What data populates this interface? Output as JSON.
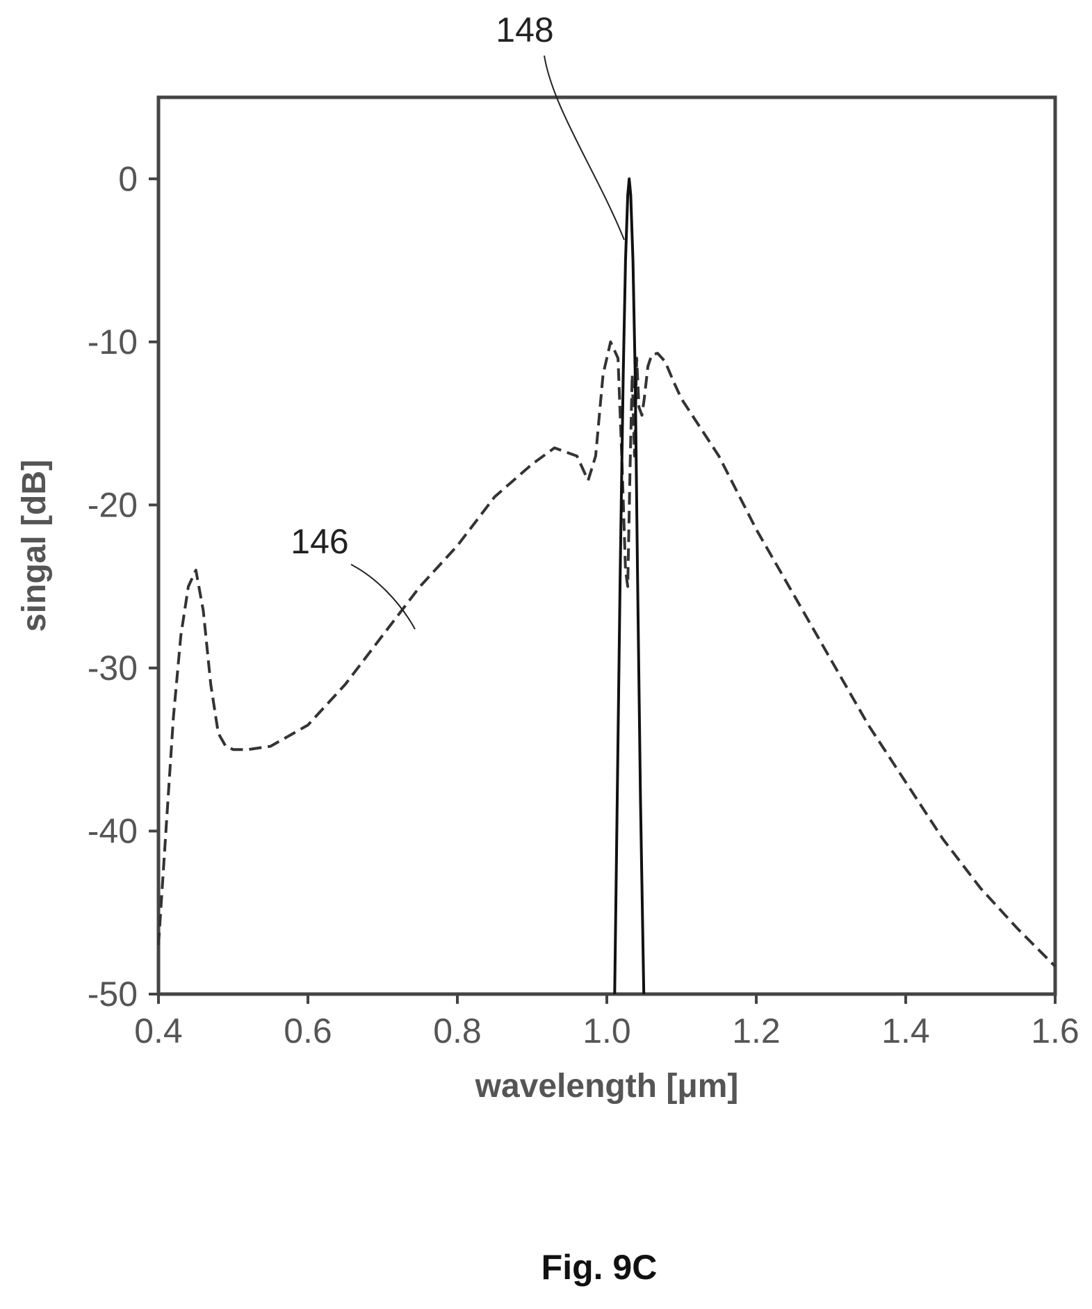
{
  "figure": {
    "caption": "Fig. 9C"
  },
  "chart_data": {
    "type": "line",
    "title": "",
    "xlabel": "wavelength [μm]",
    "ylabel": "singal [dB]",
    "xlim": [
      0.4,
      1.6
    ],
    "ylim": [
      -50,
      5
    ],
    "x_ticks": [
      0.4,
      0.6,
      0.8,
      1.0,
      1.2,
      1.4,
      1.6
    ],
    "x_tick_labels": [
      "0.4",
      "0.6",
      "0.8",
      "1.0",
      "1.2",
      "1.4",
      "1.6"
    ],
    "y_ticks": [
      0,
      -10,
      -20,
      -30,
      -40,
      -50
    ],
    "y_tick_labels": [
      "0",
      "-10",
      "-20",
      "-30",
      "-40",
      "-50"
    ],
    "grid": false,
    "series": [
      {
        "name": "146",
        "style": "dashed",
        "color": "#333333",
        "x": [
          0.4,
          0.41,
          0.42,
          0.43,
          0.44,
          0.45,
          0.46,
          0.47,
          0.48,
          0.49,
          0.5,
          0.52,
          0.55,
          0.6,
          0.65,
          0.7,
          0.75,
          0.8,
          0.85,
          0.9,
          0.93,
          0.96,
          0.975,
          0.985,
          0.995,
          1.005,
          1.015,
          1.02,
          1.025,
          1.028,
          1.031,
          1.034,
          1.037,
          1.04,
          1.043,
          1.047,
          1.05,
          1.055,
          1.06,
          1.068,
          1.078,
          1.09,
          1.1,
          1.15,
          1.2,
          1.25,
          1.3,
          1.35,
          1.4,
          1.45,
          1.5,
          1.55,
          1.6
        ],
        "y": [
          -47,
          -40,
          -33,
          -28,
          -25,
          -24,
          -26.5,
          -31,
          -34,
          -34.8,
          -35,
          -35,
          -34.8,
          -33.5,
          -31,
          -28,
          -25,
          -22.5,
          -19.5,
          -17.5,
          -16.5,
          -17,
          -18.5,
          -17,
          -12,
          -10,
          -11,
          -17,
          -24,
          -25,
          -18,
          -12,
          -17,
          -11,
          -14,
          -14.5,
          -13.5,
          -11.5,
          -10.8,
          -10.7,
          -11.2,
          -12.5,
          -13.5,
          -17,
          -21.5,
          -25.5,
          -29.5,
          -33.5,
          -37,
          -40.5,
          -43.5,
          -46,
          -48.3
        ]
      },
      {
        "name": "148",
        "style": "solid",
        "color": "#111111",
        "x": [
          1.0105,
          1.014,
          1.018,
          1.022,
          1.025,
          1.028,
          1.03,
          1.032,
          1.035,
          1.038,
          1.041,
          1.045,
          1.0495
        ],
        "y": [
          -50,
          -38,
          -24,
          -12,
          -5,
          -1,
          0,
          -1,
          -5,
          -12,
          -24,
          -38,
          -50
        ]
      }
    ]
  },
  "annotations": [
    {
      "label": "148",
      "points_to": "series 148 near peak"
    },
    {
      "label": "146",
      "points_to": "series 146 near 0.75 μm"
    }
  ]
}
